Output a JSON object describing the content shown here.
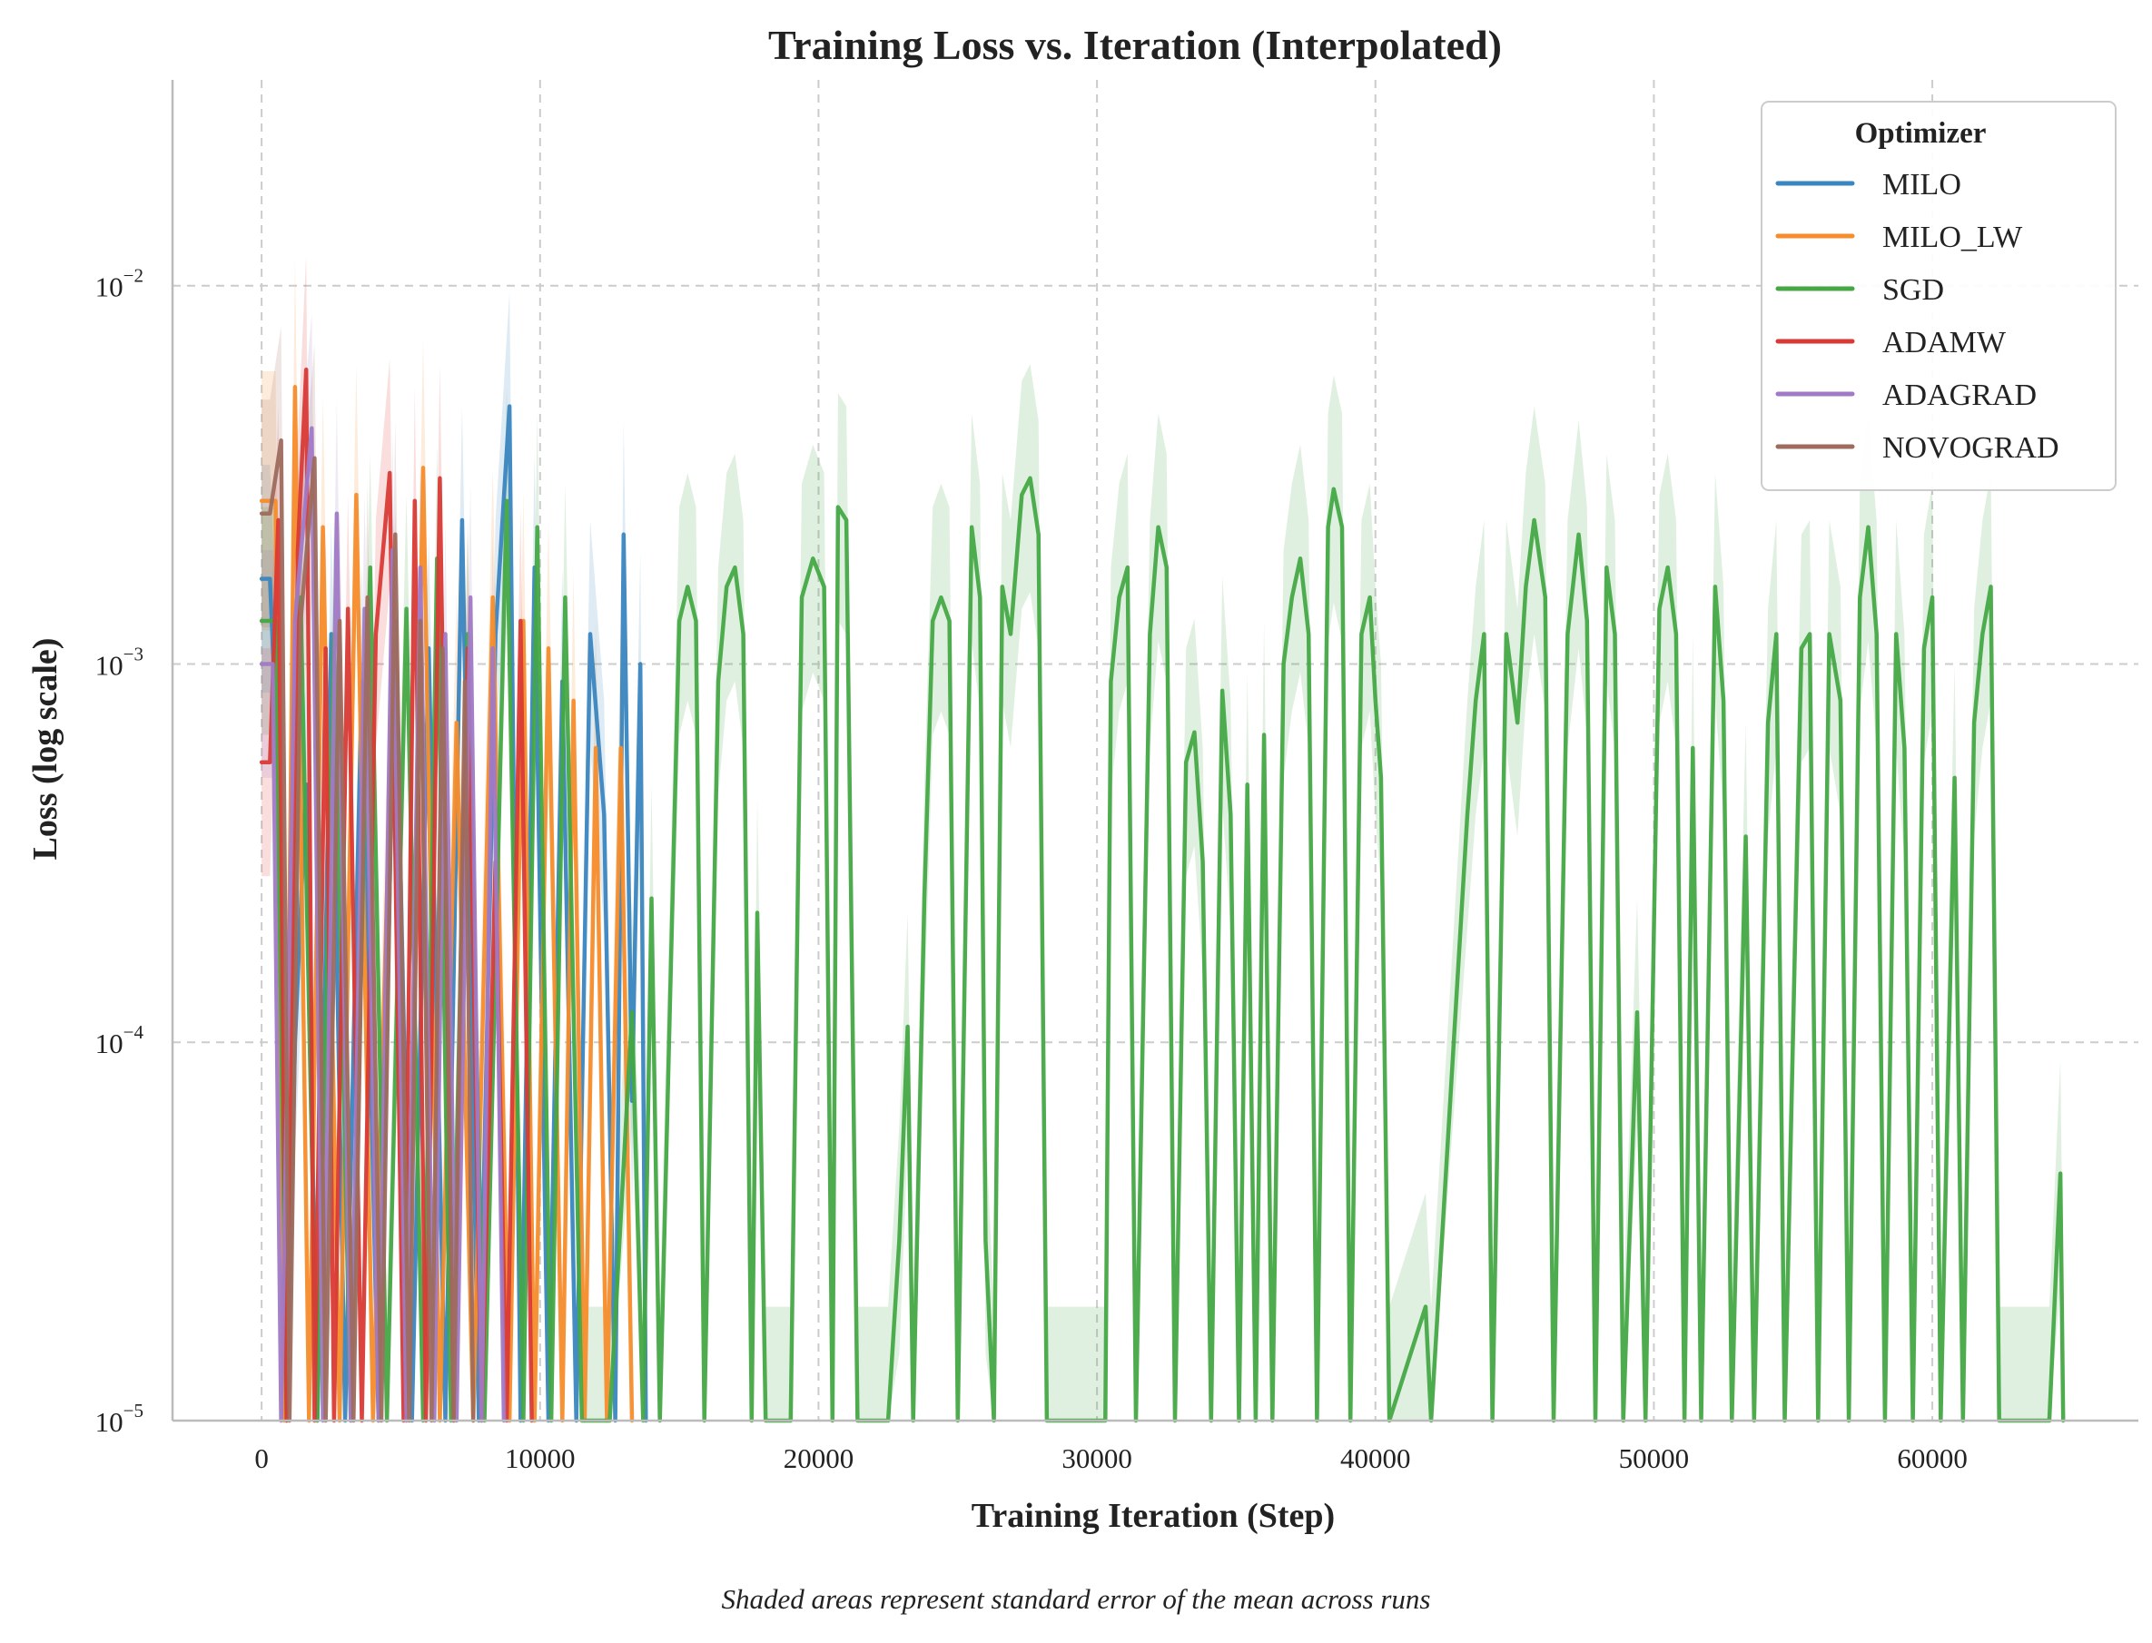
{
  "chart_data": {
    "type": "line",
    "title": "Training Loss vs. Iteration (Interpolated)",
    "xlabel": "Training Iteration (Step)",
    "ylabel": "Loss (log scale)",
    "yscale": "log",
    "xlim": [
      -3200,
      67400
    ],
    "ylim": [
      1e-05,
      0.035
    ],
    "x_ticks": [
      {
        "value": 0,
        "label": "0"
      },
      {
        "value": 10000,
        "label": "10000"
      },
      {
        "value": 20000,
        "label": "20000"
      },
      {
        "value": 30000,
        "label": "30000"
      },
      {
        "value": 40000,
        "label": "40000"
      },
      {
        "value": 50000,
        "label": "50000"
      },
      {
        "value": 60000,
        "label": "60000"
      }
    ],
    "y_ticks": [
      {
        "value": 0.01,
        "base": "10",
        "exp": "−2"
      },
      {
        "value": 0.001,
        "base": "10",
        "exp": "−3"
      },
      {
        "value": 0.0001,
        "base": "10",
        "exp": "−4"
      },
      {
        "value": 1e-05,
        "base": "10",
        "exp": "−5"
      }
    ],
    "grid": true,
    "legend": {
      "title": "Optimizer",
      "position": "top-right"
    },
    "caption": "Shaded areas represent standard error of the mean across runs",
    "series": [
      {
        "name": "MILO",
        "color": "#3a86bf",
        "points": [
          [
            0,
            0.00168
          ],
          [
            300,
            0.00168
          ],
          [
            600,
            0.0005
          ],
          [
            900,
            1e-05
          ],
          [
            1200,
            0.0001
          ],
          [
            1600,
            0.00048
          ],
          [
            2000,
            1e-05
          ],
          [
            2500,
            0.0012
          ],
          [
            3000,
            1e-05
          ],
          [
            3600,
            0.0009
          ],
          [
            4200,
            1e-05
          ],
          [
            4800,
            0.0013
          ],
          [
            5400,
            1e-05
          ],
          [
            6000,
            0.0011
          ],
          [
            6600,
            1e-05
          ],
          [
            7200,
            0.0024
          ],
          [
            7800,
            1e-05
          ],
          [
            8400,
            0.0012
          ],
          [
            8900,
            0.0048
          ],
          [
            9300,
            1e-05
          ],
          [
            9800,
            0.0018
          ],
          [
            10300,
            1e-05
          ],
          [
            10800,
            0.0009
          ],
          [
            11300,
            1e-05
          ],
          [
            11800,
            0.0012
          ],
          [
            12300,
            0.0004
          ],
          [
            12700,
            1e-05
          ],
          [
            13000,
            0.0022
          ],
          [
            13300,
            7e-05
          ],
          [
            13600,
            0.001
          ],
          [
            13800,
            1e-05
          ]
        ],
        "band_factor": 2.0
      },
      {
        "name": "MILO_LW",
        "color": "#f58d2c",
        "points": [
          [
            0,
            0.0027
          ],
          [
            500,
            0.0027
          ],
          [
            800,
            1e-05
          ],
          [
            1200,
            0.0054
          ],
          [
            1700,
            1e-05
          ],
          [
            2200,
            0.0023
          ],
          [
            2800,
            1e-05
          ],
          [
            3400,
            0.0028
          ],
          [
            4000,
            1e-05
          ],
          [
            4700,
            0.0009
          ],
          [
            5200,
            1e-05
          ],
          [
            5800,
            0.0033
          ],
          [
            6400,
            1e-05
          ],
          [
            7000,
            0.0007
          ],
          [
            7600,
            1e-05
          ],
          [
            8300,
            0.0015
          ],
          [
            8900,
            1e-05
          ],
          [
            9400,
            0.0013
          ],
          [
            9800,
            1e-05
          ],
          [
            10300,
            0.0011
          ],
          [
            10800,
            1e-05
          ],
          [
            11200,
            0.0008
          ],
          [
            11600,
            1e-05
          ],
          [
            12000,
            0.0006
          ],
          [
            12400,
            1e-05
          ],
          [
            12900,
            0.0006
          ],
          [
            13300,
            1e-05
          ]
        ],
        "band_factor": 2.2
      },
      {
        "name": "SGD",
        "color": "#45a845",
        "points": [
          [
            0,
            0.0013
          ],
          [
            500,
            0.0013
          ],
          [
            900,
            1e-05
          ],
          [
            1400,
            0.0015
          ],
          [
            2000,
            1e-05
          ],
          [
            2600,
            0.0012
          ],
          [
            3200,
            1e-05
          ],
          [
            3900,
            0.0018
          ],
          [
            4500,
            1e-05
          ],
          [
            5200,
            0.0014
          ],
          [
            5800,
            1e-05
          ],
          [
            6300,
            0.0019
          ],
          [
            6800,
            1e-05
          ],
          [
            7400,
            0.0012
          ],
          [
            8000,
            1e-05
          ],
          [
            8800,
            0.0027
          ],
          [
            9400,
            1e-05
          ],
          [
            9900,
            0.0023
          ],
          [
            10400,
            1e-05
          ],
          [
            10900,
            0.0015
          ],
          [
            11500,
            1e-05
          ],
          [
            12500,
            1e-05
          ],
          [
            13300,
            0.00012
          ],
          [
            13700,
            1e-05
          ],
          [
            14000,
            0.00024
          ],
          [
            14300,
            1e-05
          ],
          [
            15000,
            0.0013
          ],
          [
            15300,
            0.0016
          ],
          [
            15600,
            0.0013
          ],
          [
            15900,
            1e-05
          ],
          [
            16400,
            0.0009
          ],
          [
            16700,
            0.0016
          ],
          [
            17000,
            0.0018
          ],
          [
            17300,
            0.0012
          ],
          [
            17600,
            1e-05
          ],
          [
            17800,
            0.00022
          ],
          [
            18100,
            1e-05
          ],
          [
            19000,
            1e-05
          ],
          [
            19400,
            0.0015
          ],
          [
            19800,
            0.0019
          ],
          [
            20200,
            0.0016
          ],
          [
            20500,
            1e-05
          ],
          [
            20700,
            0.0026
          ],
          [
            21000,
            0.0024
          ],
          [
            21400,
            1e-05
          ],
          [
            22500,
            1e-05
          ],
          [
            22900,
            3e-05
          ],
          [
            23200,
            0.00011
          ],
          [
            23400,
            1e-05
          ],
          [
            23800,
            0.00024
          ],
          [
            24100,
            0.0013
          ],
          [
            24400,
            0.0015
          ],
          [
            24700,
            0.0013
          ],
          [
            25000,
            1e-05
          ],
          [
            25500,
            0.0023
          ],
          [
            25800,
            0.0015
          ],
          [
            26000,
            3e-05
          ],
          [
            26300,
            1e-05
          ],
          [
            26600,
            0.0016
          ],
          [
            26900,
            0.0012
          ],
          [
            27300,
            0.0028
          ],
          [
            27600,
            0.0031
          ],
          [
            27900,
            0.0022
          ],
          [
            28200,
            1e-05
          ],
          [
            29500,
            1e-05
          ],
          [
            30300,
            1e-05
          ],
          [
            30500,
            0.0009
          ],
          [
            30800,
            0.0015
          ],
          [
            31100,
            0.0018
          ],
          [
            31400,
            1e-05
          ],
          [
            31900,
            0.0012
          ],
          [
            32200,
            0.0023
          ],
          [
            32500,
            0.0018
          ],
          [
            32800,
            1e-05
          ],
          [
            33200,
            0.00055
          ],
          [
            33500,
            0.00066
          ],
          [
            33800,
            0.0003
          ],
          [
            34100,
            1e-05
          ],
          [
            34500,
            0.00085
          ],
          [
            34800,
            0.0004
          ],
          [
            35100,
            1e-05
          ],
          [
            35400,
            0.00048
          ],
          [
            35700,
            1e-05
          ],
          [
            36000,
            0.00065
          ],
          [
            36300,
            1e-05
          ],
          [
            36700,
            0.001
          ],
          [
            37000,
            0.0015
          ],
          [
            37300,
            0.0019
          ],
          [
            37600,
            0.0012
          ],
          [
            37900,
            1e-05
          ],
          [
            38300,
            0.0023
          ],
          [
            38500,
            0.0029
          ],
          [
            38800,
            0.0023
          ],
          [
            39100,
            1e-05
          ],
          [
            39500,
            0.0012
          ],
          [
            39800,
            0.0015
          ],
          [
            40000,
            0.0008
          ],
          [
            40200,
            0.0005
          ],
          [
            40500,
            1e-05
          ],
          [
            41800,
            2e-05
          ],
          [
            42000,
            1e-05
          ],
          [
            43300,
            0.0004
          ],
          [
            43600,
            0.0008
          ],
          [
            43900,
            0.0012
          ],
          [
            44200,
            1e-05
          ],
          [
            44700,
            0.0012
          ],
          [
            45100,
            0.0007
          ],
          [
            45400,
            0.0016
          ],
          [
            45700,
            0.0024
          ],
          [
            46100,
            0.0015
          ],
          [
            46400,
            1e-05
          ],
          [
            46900,
            0.0012
          ],
          [
            47300,
            0.0022
          ],
          [
            47600,
            0.0013
          ],
          [
            47900,
            1e-05
          ],
          [
            48300,
            0.0018
          ],
          [
            48600,
            0.0012
          ],
          [
            48900,
            1e-05
          ],
          [
            49400,
            0.00012
          ],
          [
            49700,
            1e-05
          ],
          [
            50200,
            0.0014
          ],
          [
            50500,
            0.0018
          ],
          [
            50800,
            0.0012
          ],
          [
            51100,
            1e-05
          ],
          [
            51400,
            0.0006
          ],
          [
            51700,
            1e-05
          ],
          [
            52200,
            0.0016
          ],
          [
            52500,
            0.0008
          ],
          [
            52800,
            1e-05
          ],
          [
            53300,
            0.00035
          ],
          [
            53600,
            1e-05
          ],
          [
            54100,
            0.0007
          ],
          [
            54400,
            0.0012
          ],
          [
            54700,
            1e-05
          ],
          [
            55300,
            0.0011
          ],
          [
            55600,
            0.0012
          ],
          [
            55900,
            1e-05
          ],
          [
            56300,
            0.0012
          ],
          [
            56700,
            0.0008
          ],
          [
            57000,
            1e-05
          ],
          [
            57400,
            0.0015
          ],
          [
            57700,
            0.0023
          ],
          [
            58000,
            0.0012
          ],
          [
            58300,
            1e-05
          ],
          [
            58700,
            0.0012
          ],
          [
            59000,
            0.0006
          ],
          [
            59300,
            1e-05
          ],
          [
            59700,
            0.0011
          ],
          [
            60000,
            0.0015
          ],
          [
            60300,
            1e-05
          ],
          [
            60800,
            0.0005
          ],
          [
            61100,
            1e-05
          ],
          [
            61500,
            0.0007
          ],
          [
            61800,
            0.0012
          ],
          [
            62100,
            0.0016
          ],
          [
            62400,
            1e-05
          ],
          [
            62900,
            1e-05
          ],
          [
            64200,
            1e-05
          ],
          [
            64600,
            4.5e-05
          ],
          [
            64700,
            1e-05
          ]
        ],
        "band_factor": 2.0
      },
      {
        "name": "ADAMW",
        "color": "#d93a35",
        "points": [
          [
            0,
            0.00055
          ],
          [
            300,
            0.00055
          ],
          [
            600,
            0.0024
          ],
          [
            900,
            1e-05
          ],
          [
            1300,
            0.002
          ],
          [
            1600,
            0.006
          ],
          [
            1900,
            1e-05
          ],
          [
            2300,
            0.0011
          ],
          [
            2600,
            1e-05
          ],
          [
            3100,
            0.0014
          ],
          [
            3600,
            1e-05
          ],
          [
            4100,
            0.0012
          ],
          [
            4600,
            0.0032
          ],
          [
            5100,
            1e-05
          ],
          [
            5500,
            0.0027
          ],
          [
            5900,
            1e-05
          ],
          [
            6400,
            0.0031
          ],
          [
            6900,
            1e-05
          ],
          [
            7400,
            0.0011
          ],
          [
            7900,
            1e-05
          ],
          [
            8400,
            0.0003
          ],
          [
            8800,
            1e-05
          ],
          [
            9300,
            0.0013
          ],
          [
            9700,
            1e-05
          ]
        ],
        "band_factor": 2.0
      },
      {
        "name": "ADAGRAD",
        "color": "#a07ac6",
        "points": [
          [
            0,
            0.001
          ],
          [
            400,
            0.001
          ],
          [
            700,
            1e-05
          ],
          [
            1200,
            0.0013
          ],
          [
            1800,
            0.0042
          ],
          [
            2200,
            1e-05
          ],
          [
            2700,
            0.0025
          ],
          [
            3200,
            1e-05
          ],
          [
            3700,
            0.0014
          ],
          [
            4200,
            1e-05
          ],
          [
            4700,
            0.002
          ],
          [
            5200,
            1e-05
          ],
          [
            5700,
            0.0018
          ],
          [
            6200,
            1e-05
          ],
          [
            6600,
            0.0012
          ],
          [
            7000,
            1e-05
          ],
          [
            7500,
            0.0015
          ],
          [
            7900,
            1e-05
          ],
          [
            8300,
            0.0011
          ],
          [
            8700,
            1e-05
          ]
        ],
        "band_factor": 2.0
      },
      {
        "name": "NOVOGRAD",
        "color": "#9e6b5e",
        "points": [
          [
            0,
            0.0025
          ],
          [
            300,
            0.0025
          ],
          [
            700,
            0.0039
          ],
          [
            1000,
            1e-05
          ],
          [
            1400,
            0.0013
          ],
          [
            1900,
            0.0035
          ],
          [
            2300,
            1e-05
          ],
          [
            2800,
            0.0013
          ],
          [
            3300,
            1e-05
          ],
          [
            3800,
            0.0015
          ],
          [
            4300,
            1e-05
          ],
          [
            4800,
            0.0022
          ],
          [
            5300,
            1e-05
          ],
          [
            5700,
            0.0013
          ],
          [
            6100,
            1e-05
          ],
          [
            6500,
            0.0011
          ],
          [
            6900,
            1e-05
          ],
          [
            7300,
            0.0009
          ],
          [
            7600,
            1e-05
          ]
        ],
        "band_factor": 2.0
      }
    ]
  }
}
